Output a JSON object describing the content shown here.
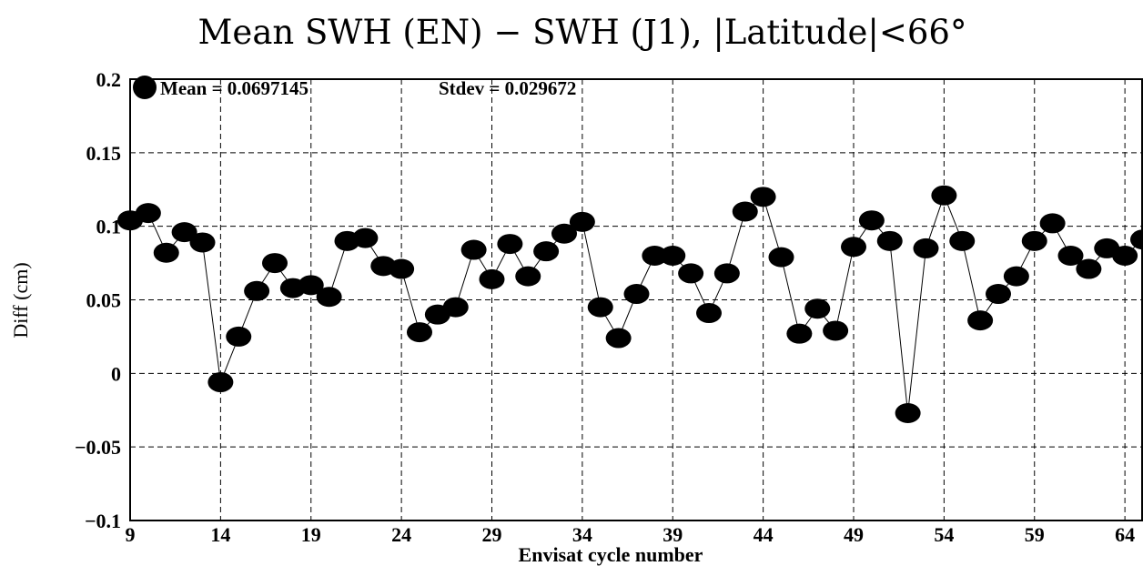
{
  "chart_data": {
    "type": "scatter",
    "title": "Mean SWH (EN) − SWH (J1), |Latitude|<66°",
    "xlabel": "Envisat cycle number",
    "ylabel": "Diff (cm)",
    "xlim": [
      9,
      65
    ],
    "ylim": [
      -0.1,
      0.2
    ],
    "xticks": [
      9,
      14,
      19,
      24,
      29,
      34,
      39,
      44,
      49,
      54,
      59,
      64
    ],
    "yticks": [
      -0.1,
      -0.05,
      0,
      0.05,
      0.1,
      0.15,
      0.2
    ],
    "ytick_labels": [
      "−0.1",
      "−0.05",
      "0",
      "0.05",
      "0.1",
      "0.15",
      "0.2"
    ],
    "grid": true,
    "connected": true,
    "annotations": {
      "mean": "Mean = 0.0697145",
      "stdev": "Stdev = 0.029672"
    },
    "legend_placement": "top-left",
    "x": [
      9,
      10,
      11,
      12,
      13,
      14,
      15,
      16,
      17,
      18,
      19,
      20,
      21,
      22,
      23,
      24,
      25,
      26,
      27,
      28,
      29,
      30,
      31,
      32,
      33,
      34,
      35,
      36,
      37,
      38,
      39,
      40,
      41,
      42,
      43,
      44,
      45,
      46,
      47,
      48,
      49,
      50,
      51,
      52,
      53,
      54,
      55,
      56,
      57,
      58,
      59,
      60,
      61,
      62,
      63,
      64,
      65
    ],
    "y": [
      0.104,
      0.109,
      0.082,
      0.096,
      0.089,
      -0.006,
      0.025,
      0.056,
      0.075,
      0.058,
      0.06,
      0.052,
      0.09,
      0.092,
      0.073,
      0.071,
      0.028,
      0.04,
      0.045,
      0.084,
      0.064,
      0.088,
      0.066,
      0.083,
      0.095,
      0.103,
      0.045,
      0.024,
      0.054,
      0.08,
      0.08,
      0.068,
      0.041,
      0.068,
      0.11,
      0.12,
      0.079,
      0.027,
      0.044,
      0.029,
      0.086,
      0.104,
      0.09,
      -0.027,
      0.085,
      0.121,
      0.09,
      0.036,
      0.054,
      0.066,
      0.09,
      0.102,
      0.08,
      0.071,
      0.085,
      0.08,
      0.091
    ]
  }
}
